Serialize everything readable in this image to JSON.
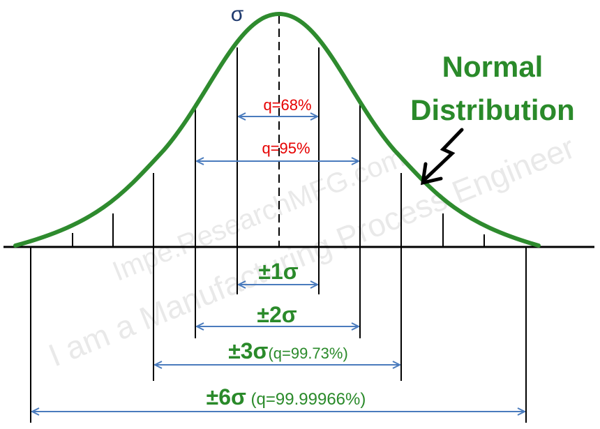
{
  "sigma_label": "σ",
  "title_line1": "Normal",
  "title_line2": "Distribution",
  "watermark": "I am a Manufacturing Process Engineer",
  "watermark2": "Impe.ResearchMFG.com",
  "inner_labels": {
    "q68": "q=68%",
    "q95": "q=95%"
  },
  "bottom_labels": {
    "s1": "±1σ",
    "s2": "±2σ",
    "s3": "±3σ",
    "s3_q": "(q=99.73%)",
    "s6": "±6σ",
    "s6_q": " (q=99.99966%)"
  },
  "colors": {
    "curve": "#2e8b2e",
    "arrow": "#4a7bbd",
    "green_text": "#2a8a2a",
    "red_text": "#e60000",
    "sigma_text": "#1f3a6e"
  }
}
